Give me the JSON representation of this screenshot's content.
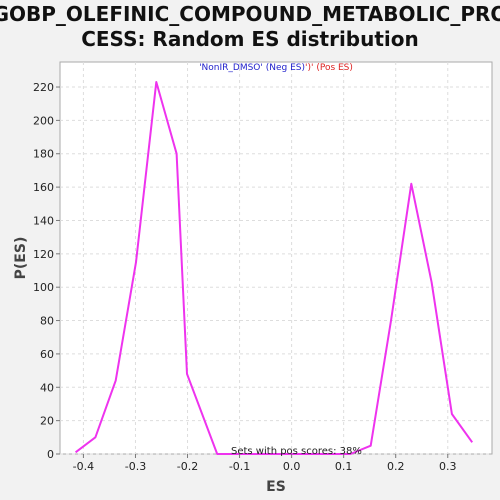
{
  "chart_data": {
    "type": "line",
    "title_lines": [
      "GOBP_OLEFINIC_COMPOUND_METABOLIC_PRO",
      "CESS: Random ES distribution"
    ],
    "xlabel": "ES",
    "ylabel": "P(ES)",
    "xlim": [
      -0.445,
      0.385
    ],
    "ylim": [
      0,
      235
    ],
    "xticks": [
      -0.4,
      -0.3,
      -0.2,
      -0.1,
      0.0,
      0.1,
      0.2,
      0.3
    ],
    "xtick_labels": [
      "-0.4",
      "-0.3",
      "-0.2",
      "-0.1",
      "0.0",
      "0.1",
      "0.2",
      "0.3"
    ],
    "yticks": [
      0,
      20,
      40,
      60,
      80,
      100,
      120,
      140,
      160,
      180,
      200,
      220
    ],
    "ytick_labels": [
      "0",
      "20",
      "40",
      "60",
      "80",
      "100",
      "120",
      "140",
      "160",
      "180",
      "200",
      "220"
    ],
    "grid": true,
    "series": [
      {
        "color": "#ee33ee",
        "x": [
          -0.415,
          -0.377,
          -0.338,
          -0.299,
          -0.26,
          -0.221,
          -0.201,
          -0.143,
          -0.105,
          -0.066,
          -0.027,
          0.012,
          0.051,
          0.09,
          0.113,
          0.152,
          0.191,
          0.23,
          0.269,
          0.308,
          0.347
        ],
        "y": [
          1,
          10,
          44,
          115,
          223,
          180,
          48,
          0,
          0,
          0,
          0,
          0,
          0,
          0,
          0,
          5,
          80,
          162,
          103,
          24,
          7
        ]
      }
    ],
    "legend": {
      "placement": "top-center",
      "parts": [
        {
          "text": "'NonIR_DMSO' (Neg ES)",
          "color": "#2222cc"
        },
        {
          "text": "')' (Pos ES)",
          "color": "#dd2222"
        }
      ]
    },
    "annotation": "Sets with pos scores: 38%",
    "colors": {
      "plot_background": "#ffffff",
      "page_background": "#f2f2f2",
      "grid": "#dddddd"
    }
  }
}
